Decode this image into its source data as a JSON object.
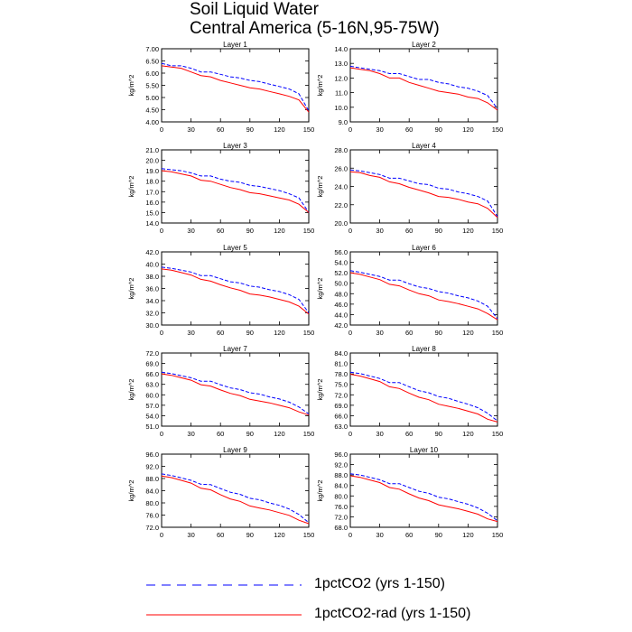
{
  "colors": {
    "series_1": "#0000ff",
    "series_2": "#ff0000",
    "axes": "#000000"
  },
  "chart_data": {
    "type": "line",
    "title": "Soil Liquid Water",
    "subtitle": "Central America (5-16N,95-75W)",
    "legend": {
      "placement": "bottom-center",
      "entries": [
        "1pctCO2 (yrs 1-150)",
        "1pctCO2-rad (yrs 1-150)"
      ]
    },
    "series_styles": [
      {
        "name": "1pctCO2 (yrs 1-150)",
        "color": "#0000ff",
        "dash": "dashed"
      },
      {
        "name": "1pctCO2-rad (yrs 1-150)",
        "color": "#ff0000",
        "dash": "solid"
      }
    ],
    "ylabel": "kg/m^2",
    "xlim": [
      0,
      150
    ],
    "xticks": [
      0,
      30,
      60,
      90,
      120,
      150
    ],
    "panels": [
      {
        "title": "Layer 1",
        "ylim": [
          4.0,
          7.0
        ],
        "yticks": [
          "4.00",
          "4.50",
          "5.00",
          "5.50",
          "6.00",
          "6.50",
          "7.00"
        ],
        "x": [
          0,
          10,
          20,
          30,
          40,
          50,
          60,
          70,
          80,
          90,
          100,
          110,
          120,
          130,
          140,
          150
        ],
        "series": [
          {
            "name": "1pctCO2 (yrs 1-150)",
            "values": [
              6.4,
              6.3,
              6.3,
              6.2,
              6.05,
              6.05,
              5.95,
              5.85,
              5.8,
              5.7,
              5.65,
              5.55,
              5.45,
              5.35,
              5.15,
              4.45
            ]
          },
          {
            "name": "1pctCO2-rad (yrs 1-150)",
            "values": [
              6.3,
              6.25,
              6.2,
              6.05,
              5.9,
              5.85,
              5.7,
              5.6,
              5.5,
              5.4,
              5.35,
              5.25,
              5.15,
              5.05,
              4.9,
              4.4
            ]
          }
        ]
      },
      {
        "title": "Layer 2",
        "ylim": [
          9.0,
          14.0
        ],
        "yticks": [
          "9.0",
          "10.0",
          "11.0",
          "12.0",
          "13.0",
          "14.0"
        ],
        "x": [
          0,
          10,
          20,
          30,
          40,
          50,
          60,
          70,
          80,
          90,
          100,
          110,
          120,
          130,
          140,
          150
        ],
        "series": [
          {
            "name": "1pctCO2 (yrs 1-150)",
            "values": [
              12.8,
              12.7,
              12.6,
              12.5,
              12.3,
              12.3,
              12.1,
              11.9,
              11.9,
              11.7,
              11.6,
              11.4,
              11.3,
              11.1,
              10.8,
              9.9
            ]
          },
          {
            "name": "1pctCO2-rad (yrs 1-150)",
            "values": [
              12.7,
              12.6,
              12.5,
              12.3,
              12.0,
              12.0,
              11.7,
              11.5,
              11.3,
              11.1,
              11.0,
              10.9,
              10.7,
              10.6,
              10.3,
              9.8
            ]
          }
        ]
      },
      {
        "title": "Layer 3",
        "ylim": [
          14.0,
          21.0
        ],
        "yticks": [
          "14.0",
          "15.0",
          "16.0",
          "17.0",
          "18.0",
          "19.0",
          "20.0",
          "21.0"
        ],
        "x": [
          0,
          10,
          20,
          30,
          40,
          50,
          60,
          70,
          80,
          90,
          100,
          110,
          120,
          130,
          140,
          150
        ],
        "series": [
          {
            "name": "1pctCO2 (yrs 1-150)",
            "values": [
              19.2,
              19.1,
              19.0,
              18.8,
              18.5,
              18.5,
              18.2,
              18.0,
              17.9,
              17.6,
              17.5,
              17.3,
              17.1,
              16.8,
              16.4,
              15.0
            ]
          },
          {
            "name": "1pctCO2-rad (yrs 1-150)",
            "values": [
              19.0,
              18.9,
              18.7,
              18.5,
              18.1,
              18.0,
              17.7,
              17.4,
              17.2,
              16.9,
              16.8,
              16.6,
              16.4,
              16.2,
              15.8,
              15.0
            ]
          }
        ]
      },
      {
        "title": "Layer 4",
        "ylim": [
          20.0,
          28.0
        ],
        "yticks": [
          "20.0",
          "22.0",
          "24.0",
          "26.0",
          "28.0"
        ],
        "x": [
          0,
          10,
          20,
          30,
          40,
          50,
          60,
          70,
          80,
          90,
          100,
          110,
          120,
          130,
          140,
          150
        ],
        "series": [
          {
            "name": "1pctCO2 (yrs 1-150)",
            "values": [
              25.8,
              25.7,
              25.5,
              25.3,
              24.9,
              24.9,
              24.6,
              24.3,
              24.2,
              23.8,
              23.7,
              23.4,
              23.2,
              22.9,
              22.4,
              20.7
            ]
          },
          {
            "name": "1pctCO2-rad (yrs 1-150)",
            "values": [
              25.6,
              25.5,
              25.2,
              25.0,
              24.5,
              24.3,
              23.9,
              23.6,
              23.3,
              22.9,
              22.8,
              22.6,
              22.3,
              22.1,
              21.6,
              20.6
            ]
          }
        ]
      },
      {
        "title": "Layer 5",
        "ylim": [
          30.0,
          42.0
        ],
        "yticks": [
          "30.0",
          "32.0",
          "34.0",
          "36.0",
          "38.0",
          "40.0",
          "42.0"
        ],
        "x": [
          0,
          10,
          20,
          30,
          40,
          50,
          60,
          70,
          80,
          90,
          100,
          110,
          120,
          130,
          140,
          150
        ],
        "series": [
          {
            "name": "1pctCO2 (yrs 1-150)",
            "values": [
              39.5,
              39.3,
              39.0,
              38.7,
              38.1,
              38.1,
              37.6,
              37.1,
              36.9,
              36.4,
              36.2,
              35.8,
              35.5,
              35.0,
              34.2,
              32.0
            ]
          },
          {
            "name": "1pctCO2-rad (yrs 1-150)",
            "values": [
              39.2,
              39.0,
              38.6,
              38.2,
              37.5,
              37.2,
              36.6,
              36.1,
              35.7,
              35.1,
              34.9,
              34.6,
              34.2,
              33.8,
              33.1,
              31.8
            ]
          }
        ]
      },
      {
        "title": "Layer 6",
        "ylim": [
          42.0,
          56.0
        ],
        "yticks": [
          "42.0",
          "44.0",
          "46.0",
          "48.0",
          "50.0",
          "52.0",
          "54.0",
          "56.0"
        ],
        "x": [
          0,
          10,
          20,
          30,
          40,
          50,
          60,
          70,
          80,
          90,
          100,
          110,
          120,
          130,
          140,
          150
        ],
        "series": [
          {
            "name": "1pctCO2 (yrs 1-150)",
            "values": [
              52.4,
              52.1,
              51.7,
              51.3,
              50.6,
              50.6,
              49.9,
              49.3,
              49.0,
              48.4,
              48.1,
              47.6,
              47.2,
              46.6,
              45.6,
              43.2
            ]
          },
          {
            "name": "1pctCO2-rad (yrs 1-150)",
            "values": [
              52.0,
              51.7,
              51.2,
              50.7,
              49.8,
              49.5,
              48.7,
              48.0,
              47.6,
              46.8,
              46.5,
              46.1,
              45.6,
              45.1,
              44.2,
              43.0
            ]
          }
        ]
      },
      {
        "title": "Layer 7",
        "ylim": [
          51.0,
          72.0
        ],
        "yticks": [
          "51.0",
          "54.0",
          "57.0",
          "60.0",
          "63.0",
          "66.0",
          "69.0",
          "72.0"
        ],
        "x": [
          0,
          10,
          20,
          30,
          40,
          50,
          60,
          70,
          80,
          90,
          100,
          110,
          120,
          130,
          140,
          150
        ],
        "series": [
          {
            "name": "1pctCO2 (yrs 1-150)",
            "values": [
              66.5,
              66.1,
              65.5,
              64.9,
              63.9,
              63.9,
              62.9,
              62.0,
              61.5,
              60.6,
              60.2,
              59.4,
              58.8,
              57.9,
              56.5,
              54.5
            ]
          },
          {
            "name": "1pctCO2-rad (yrs 1-150)",
            "values": [
              66.0,
              65.6,
              64.9,
              64.2,
              62.9,
              62.5,
              61.4,
              60.4,
              59.8,
              58.7,
              58.2,
              57.7,
              57.0,
              56.3,
              55.1,
              54.2
            ]
          }
        ]
      },
      {
        "title": "Layer 8",
        "ylim": [
          63.0,
          84.0
        ],
        "yticks": [
          "63.0",
          "66.0",
          "69.0",
          "72.0",
          "75.0",
          "78.0",
          "81.0",
          "84.0"
        ],
        "x": [
          0,
          10,
          20,
          30,
          40,
          50,
          60,
          70,
          80,
          90,
          100,
          110,
          120,
          130,
          140,
          150
        ],
        "series": [
          {
            "name": "1pctCO2 (yrs 1-150)",
            "values": [
              78.5,
              78.1,
              77.4,
              76.7,
              75.5,
              75.5,
              74.3,
              73.2,
              72.6,
              71.5,
              71.0,
              70.1,
              69.3,
              68.3,
              66.7,
              64.5
            ]
          },
          {
            "name": "1pctCO2-rad (yrs 1-150)",
            "values": [
              77.9,
              77.4,
              76.6,
              75.8,
              74.3,
              73.8,
              72.5,
              71.3,
              70.6,
              69.3,
              68.7,
              68.1,
              67.3,
              66.5,
              65.0,
              64.2
            ]
          }
        ]
      },
      {
        "title": "Layer 9",
        "ylim": [
          72.0,
          96.0
        ],
        "yticks": [
          "72.0",
          "76.0",
          "80.0",
          "84.0",
          "88.0",
          "92.0",
          "96.0"
        ],
        "x": [
          0,
          10,
          20,
          30,
          40,
          50,
          60,
          70,
          80,
          90,
          100,
          110,
          120,
          130,
          140,
          150
        ],
        "series": [
          {
            "name": "1pctCO2 (yrs 1-150)",
            "values": [
              89.5,
              89.0,
              88.2,
              87.4,
              86.1,
              86.0,
              84.7,
              83.5,
              82.8,
              81.5,
              81.0,
              80.0,
              79.2,
              78.0,
              76.2,
              73.5
            ]
          },
          {
            "name": "1pctCO2-rad (yrs 1-150)",
            "values": [
              88.8,
              88.3,
              87.4,
              86.5,
              84.8,
              84.3,
              82.7,
              81.3,
              80.5,
              79.0,
              78.3,
              77.7,
              76.8,
              75.9,
              74.3,
              73.2
            ]
          }
        ]
      },
      {
        "title": "Layer 10",
        "ylim": [
          68.0,
          96.0
        ],
        "yticks": [
          "68.0",
          "72.0",
          "76.0",
          "80.0",
          "84.0",
          "88.0",
          "92.0",
          "96.0"
        ],
        "x": [
          0,
          10,
          20,
          30,
          40,
          50,
          60,
          70,
          80,
          90,
          100,
          110,
          120,
          130,
          140,
          150
        ],
        "series": [
          {
            "name": "1pctCO2 (yrs 1-150)",
            "values": [
              88.5,
              88.0,
              87.1,
              86.2,
              84.7,
              84.7,
              83.2,
              81.8,
              81.0,
              79.5,
              78.9,
              77.8,
              76.8,
              75.4,
              73.4,
              70.5
            ]
          },
          {
            "name": "1pctCO2-rad (yrs 1-150)",
            "values": [
              87.7,
              87.1,
              86.1,
              85.1,
              83.2,
              82.6,
              80.8,
              79.2,
              78.2,
              76.6,
              75.8,
              75.1,
              74.1,
              73.0,
              71.2,
              70.2
            ]
          }
        ]
      }
    ]
  }
}
